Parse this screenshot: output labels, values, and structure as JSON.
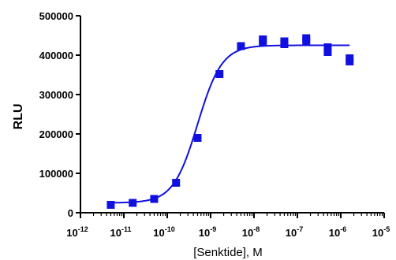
{
  "chart_data": {
    "type": "scatter",
    "title": "",
    "xlabel": "[Senktide], M",
    "ylabel": "RLU",
    "x_scale": "log10",
    "xlim": [
      1e-12,
      1e-05
    ],
    "ylim": [
      0,
      500000
    ],
    "x_ticks": [
      {
        "base": "10",
        "exp": "-12",
        "value": 1e-12
      },
      {
        "base": "10",
        "exp": "-11",
        "value": 1e-11
      },
      {
        "base": "10",
        "exp": "-10",
        "value": 1e-10
      },
      {
        "base": "10",
        "exp": "-9",
        "value": 1e-09
      },
      {
        "base": "10",
        "exp": "-8",
        "value": 1e-08
      },
      {
        "base": "10",
        "exp": "-7",
        "value": 1e-07
      },
      {
        "base": "10",
        "exp": "-6",
        "value": 1e-06
      },
      {
        "base": "10",
        "exp": "-5",
        "value": 1e-05
      }
    ],
    "y_ticks": [
      "0",
      "100000",
      "200000",
      "300000",
      "400000",
      "500000"
    ],
    "y_tick_values": [
      0,
      100000,
      200000,
      300000,
      400000,
      500000
    ],
    "grid": false,
    "legend": "none",
    "series": [
      {
        "marker": "square",
        "color": "#1010e0",
        "points": [
          {
            "x": 5e-12,
            "y": 20000
          },
          {
            "x": 1.6e-11,
            "y": 25000
          },
          {
            "x": 5e-11,
            "y": 35000
          },
          {
            "x": 1.6e-10,
            "y": 76000
          },
          {
            "x": 5e-10,
            "y": 190000
          },
          {
            "x": 1.6e-09,
            "y": 352000
          },
          {
            "x": 5e-09,
            "y": 423000
          },
          {
            "x": 1.6e-08,
            "y": 432000
          },
          {
            "x": 1.6e-08,
            "y": 440000
          },
          {
            "x": 5e-08,
            "y": 428000
          },
          {
            "x": 5e-08,
            "y": 435000
          },
          {
            "x": 1.6e-07,
            "y": 436000
          },
          {
            "x": 1.6e-07,
            "y": 443000
          },
          {
            "x": 5e-07,
            "y": 408000
          },
          {
            "x": 5e-07,
            "y": 420000
          },
          {
            "x": 1.6e-06,
            "y": 384000
          },
          {
            "x": 1.6e-06,
            "y": 392000
          }
        ]
      }
    ],
    "fit_curve": {
      "model": "sigmoidal dose-response",
      "bottom": 25000,
      "top": 425000,
      "log_ec50": -9.3,
      "hill_slope": 1.55,
      "x_range": [
        5e-12,
        1.6e-06
      ],
      "color": "#1010e0"
    }
  }
}
